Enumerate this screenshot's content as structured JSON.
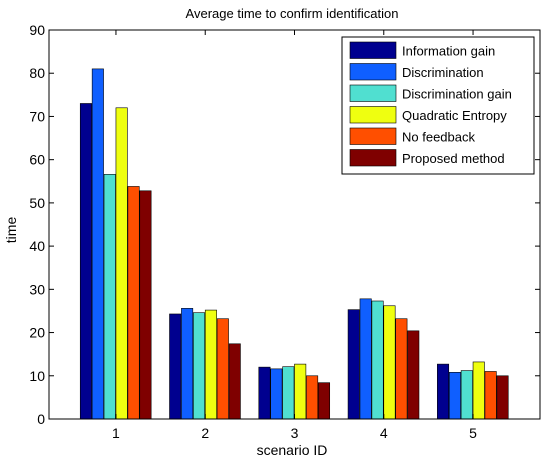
{
  "chart_data": {
    "type": "bar",
    "title": "Average time to confirm identification",
    "xlabel": "scenario ID",
    "ylabel": "time",
    "categories": [
      "1",
      "2",
      "3",
      "4",
      "5"
    ],
    "ylim": [
      0,
      90
    ],
    "yticks": [
      0,
      10,
      20,
      30,
      40,
      50,
      60,
      70,
      80,
      90
    ],
    "grid": false,
    "legend_position": "top-right",
    "series": [
      {
        "name": "Information gain",
        "color": "#00008f",
        "values": [
          73,
          24.3,
          12,
          25.3,
          12.7
        ]
      },
      {
        "name": "Discrimination",
        "color": "#0f5fff",
        "values": [
          81,
          25.6,
          11.6,
          27.8,
          10.8
        ]
      },
      {
        "name": "Discrimination gain",
        "color": "#50dfd0",
        "values": [
          56.6,
          24.6,
          12.1,
          27.3,
          11.2
        ]
      },
      {
        "name": "Quadratic Entropy",
        "color": "#efff10",
        "values": [
          72,
          25.2,
          12.7,
          26.2,
          13.2
        ]
      },
      {
        "name": "No feedback",
        "color": "#ff4f00",
        "values": [
          53.8,
          23.2,
          10,
          23.2,
          11
        ]
      },
      {
        "name": "Proposed method",
        "color": "#7f0000",
        "values": [
          52.8,
          17.4,
          8.4,
          20.4,
          10
        ]
      }
    ]
  }
}
